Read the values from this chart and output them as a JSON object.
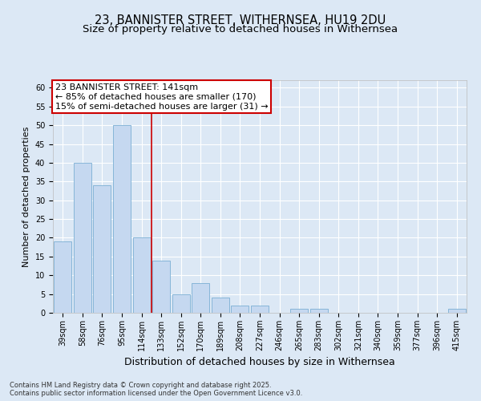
{
  "title1": "23, BANNISTER STREET, WITHERNSEA, HU19 2DU",
  "title2": "Size of property relative to detached houses in Withernsea",
  "xlabel": "Distribution of detached houses by size in Withernsea",
  "ylabel": "Number of detached properties",
  "categories": [
    "39sqm",
    "58sqm",
    "76sqm",
    "95sqm",
    "114sqm",
    "133sqm",
    "152sqm",
    "170sqm",
    "189sqm",
    "208sqm",
    "227sqm",
    "246sqm",
    "265sqm",
    "283sqm",
    "302sqm",
    "321sqm",
    "340sqm",
    "359sqm",
    "377sqm",
    "396sqm",
    "415sqm"
  ],
  "values": [
    19,
    40,
    34,
    50,
    20,
    14,
    5,
    8,
    4,
    2,
    2,
    0,
    1,
    1,
    0,
    0,
    0,
    0,
    0,
    0,
    1
  ],
  "bar_color": "#c5d8f0",
  "bar_edge_color": "#7bafd4",
  "vline_x": 4.5,
  "vline_color": "#cc0000",
  "ylim": [
    0,
    62
  ],
  "yticks": [
    0,
    5,
    10,
    15,
    20,
    25,
    30,
    35,
    40,
    45,
    50,
    55,
    60
  ],
  "annotation_text": "23 BANNISTER STREET: 141sqm\n← 85% of detached houses are smaller (170)\n15% of semi-detached houses are larger (31) →",
  "annotation_box_color": "#ffffff",
  "annotation_box_edge": "#cc0000",
  "background_color": "#dce8f5",
  "plot_bg_color": "#dce8f5",
  "footer_text": "Contains HM Land Registry data © Crown copyright and database right 2025.\nContains public sector information licensed under the Open Government Licence v3.0.",
  "title1_fontsize": 10.5,
  "title2_fontsize": 9.5,
  "xlabel_fontsize": 9,
  "ylabel_fontsize": 8,
  "tick_fontsize": 7,
  "ann_fontsize": 8,
  "footer_fontsize": 6
}
